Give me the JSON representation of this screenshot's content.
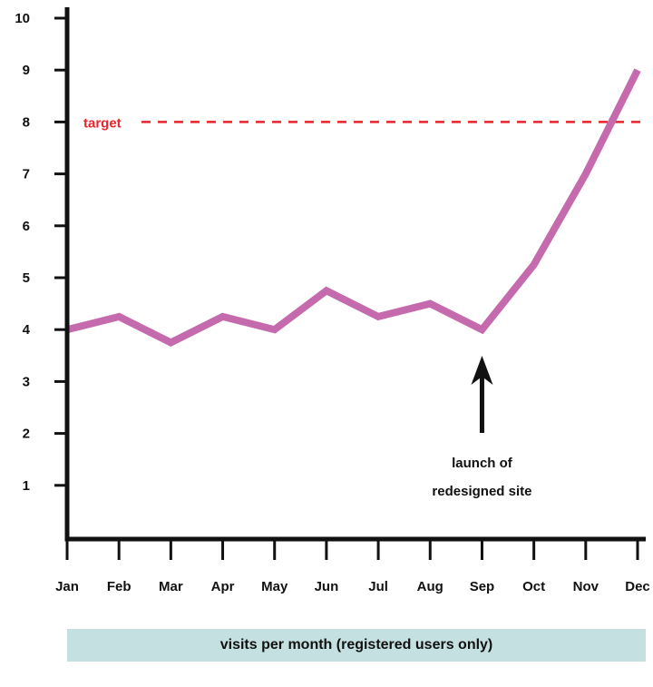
{
  "chart_data": {
    "type": "line",
    "categories": [
      "Jan",
      "Feb",
      "Mar",
      "Apr",
      "May",
      "Jun",
      "Jul",
      "Aug",
      "Sep",
      "Oct",
      "Nov",
      "Dec"
    ],
    "series": [
      {
        "values": [
          4,
          4.25,
          3.75,
          4.25,
          4,
          4.75,
          4.25,
          4.5,
          4,
          5.25,
          7,
          9
        ]
      }
    ],
    "ylim": [
      0,
      10
    ],
    "yticks": [
      1,
      2,
      3,
      4,
      5,
      6,
      7,
      8,
      9,
      10
    ],
    "title": "visits per month (registered users only)",
    "xlabel": "",
    "ylabel": "",
    "grid": false,
    "line_color": "#c46aad",
    "target": {
      "value": 8,
      "label": "target",
      "color": "#e8242b"
    },
    "annotation": {
      "category": "Sep",
      "line1": "launch of",
      "line2": "redesigned site"
    }
  },
  "caption": "visits per month (registered users only)"
}
